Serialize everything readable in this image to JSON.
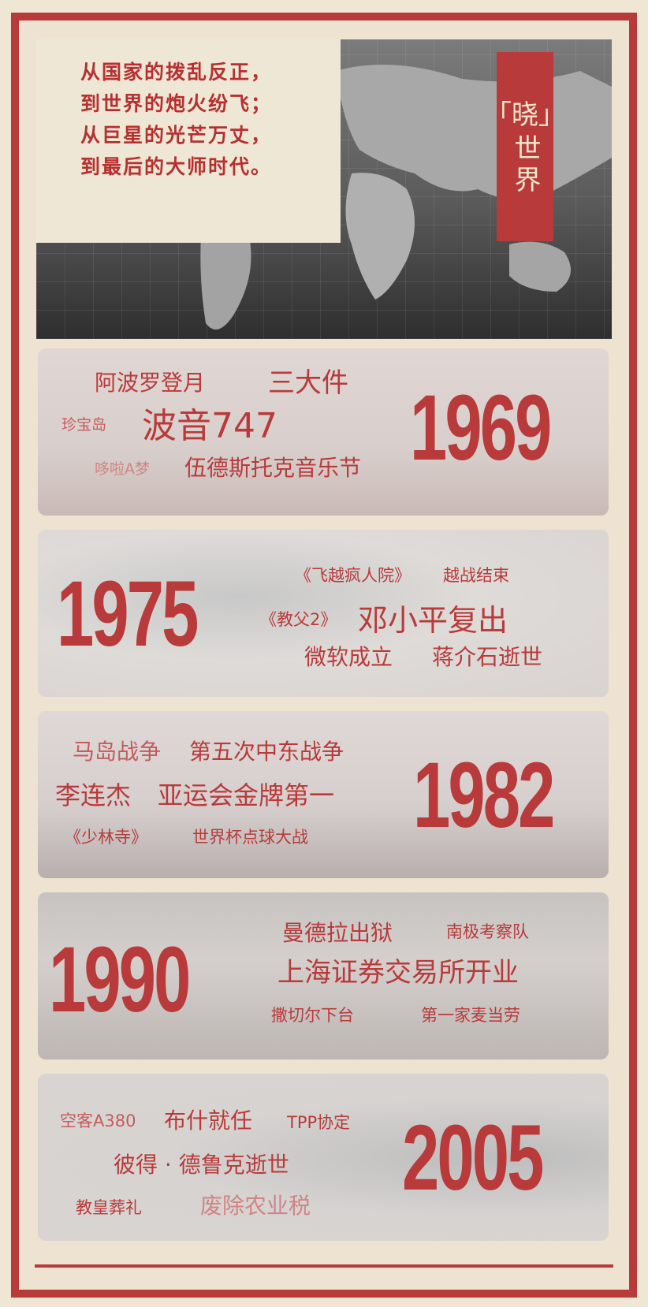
{
  "hero": {
    "quote_lines": [
      "从国家的拨乱反正，",
      "到世界的炮火纷飞；",
      "从巨星的光芒万丈，",
      "到最后的大师时代。"
    ],
    "title_top": "「晓」",
    "title_char1": "晓",
    "title_bottom": "世界"
  },
  "panels": [
    {
      "year": "1969",
      "events": [
        "阿波罗登月",
        "三大件",
        "珍宝岛",
        "波音747",
        "哆啦A梦",
        "伍德斯托克音乐节"
      ]
    },
    {
      "year": "1975",
      "events": [
        "《飞越疯人院》",
        "越战结束",
        "《教父2》",
        "邓小平复出",
        "微软成立",
        "蒋介石逝世"
      ]
    },
    {
      "year": "1982",
      "events": [
        "马岛战争",
        "第五次中东战争",
        "李连杰",
        "亚运会金牌第一",
        "《少林寺》",
        "世界杯点球大战"
      ]
    },
    {
      "year": "1990",
      "events": [
        "曼德拉出狱",
        "南极考察队",
        "上海证券交易所开业",
        "撒切尔下台",
        "第一家麦当劳"
      ]
    },
    {
      "year": "2005",
      "events": [
        "空客A380",
        "布什就任",
        "TPP协定",
        "彼得 · 德鲁克逝世",
        "教皇葬礼",
        "废除农业税"
      ]
    }
  ],
  "colors": {
    "brand_red": "#b83a3a",
    "paper": "#ede3d0"
  }
}
